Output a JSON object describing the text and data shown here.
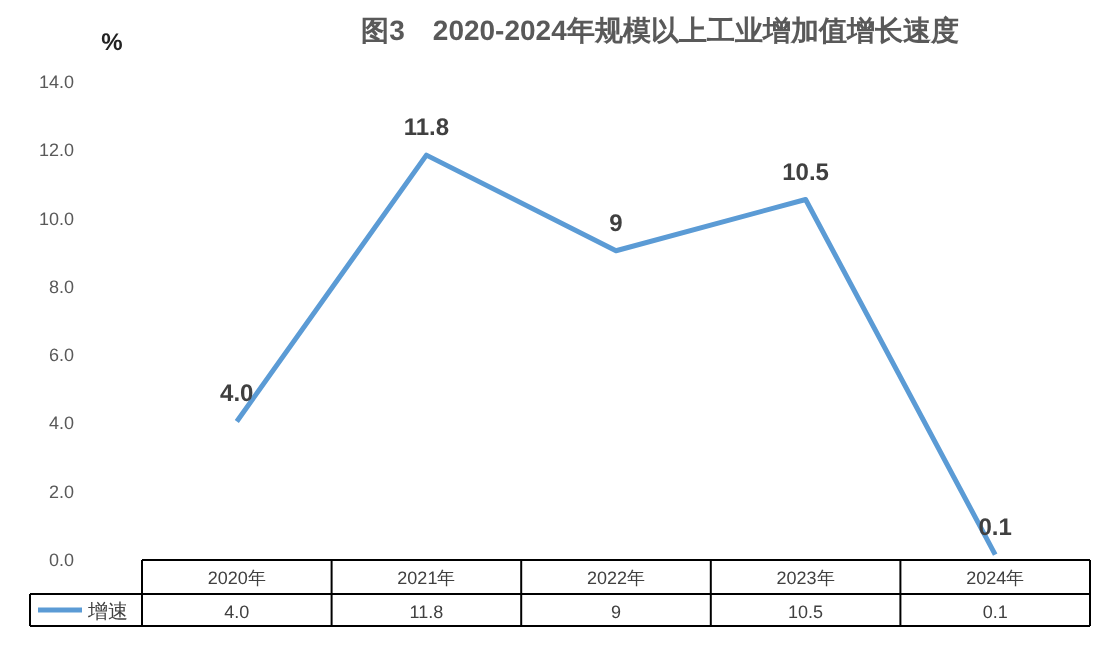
{
  "chart_data": {
    "type": "line",
    "title": "图3　2020-2024年规模以上工业增加值增长速度",
    "ylabel": "%",
    "categories": [
      "2020年",
      "2021年",
      "2022年",
      "2023年",
      "2024年"
    ],
    "series": [
      {
        "name": "增速",
        "color": "#5b9bd5",
        "values": [
          4.0,
          11.8,
          9,
          10.5,
          0.1
        ],
        "value_labels": [
          "4.0",
          "11.8",
          "9",
          "10.5",
          "0.1"
        ]
      }
    ],
    "ylim": [
      0,
      14
    ],
    "yticks": [
      {
        "value": 0,
        "label": "0.0"
      },
      {
        "value": 2,
        "label": "2.0"
      },
      {
        "value": 4,
        "label": "4.0"
      },
      {
        "value": 6,
        "label": "6.0"
      },
      {
        "value": 8,
        "label": "8.0"
      },
      {
        "value": 10,
        "label": "10.0"
      },
      {
        "value": 12,
        "label": "12.0"
      },
      {
        "value": 14,
        "label": "14.0"
      }
    ],
    "grid": false,
    "legend": "bottom",
    "marker": "none",
    "line_style": "solid"
  }
}
